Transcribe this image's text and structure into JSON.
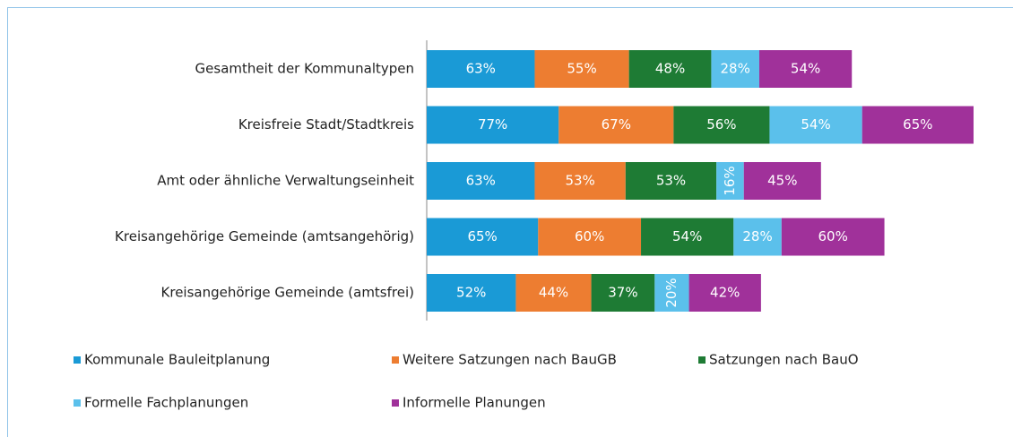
{
  "chart_data": {
    "type": "stacked-bar-horizontal",
    "categories": [
      "Gesamtheit der Kommunaltypen",
      "Kreisfreie Stadt/Stadtkreis",
      "Amt oder ähnliche Verwaltungseinheit",
      "Kreisangehörige Gemeinde (amtsangehörig)",
      "Kreisangehörige Gemeinde (amtsfrei)"
    ],
    "series": [
      {
        "name": "Kommunale Bauleitplanung",
        "color": "#1a9ad6",
        "values": [
          63,
          77,
          63,
          65,
          52
        ],
        "value_labels": [
          "63%",
          "77%",
          "63%",
          "65%",
          "52%"
        ]
      },
      {
        "name": "Weitere Satzungen nach BauGB",
        "color": "#ed7d31",
        "values": [
          55,
          67,
          53,
          60,
          44
        ],
        "value_labels": [
          "55%",
          "67%",
          "53%",
          "60%",
          "44%"
        ]
      },
      {
        "name": "Satzungen nach BauO",
        "color": "#1e7b34",
        "values": [
          48,
          56,
          53,
          54,
          37
        ],
        "value_labels": [
          "48%",
          "56%",
          "53%",
          "54%",
          "37%"
        ]
      },
      {
        "name": "Formelle Fachplanungen",
        "color": "#5bc0eb",
        "values": [
          28,
          54,
          16,
          28,
          20
        ],
        "value_labels": [
          "28%",
          "54%",
          "16%",
          "28%",
          "20%"
        ]
      },
      {
        "name": "Informelle Planungen",
        "color": "#a0319a",
        "values": [
          54,
          65,
          45,
          60,
          42
        ],
        "value_labels": [
          "54%",
          "65%",
          "45%",
          "60%",
          "42%"
        ]
      }
    ]
  }
}
